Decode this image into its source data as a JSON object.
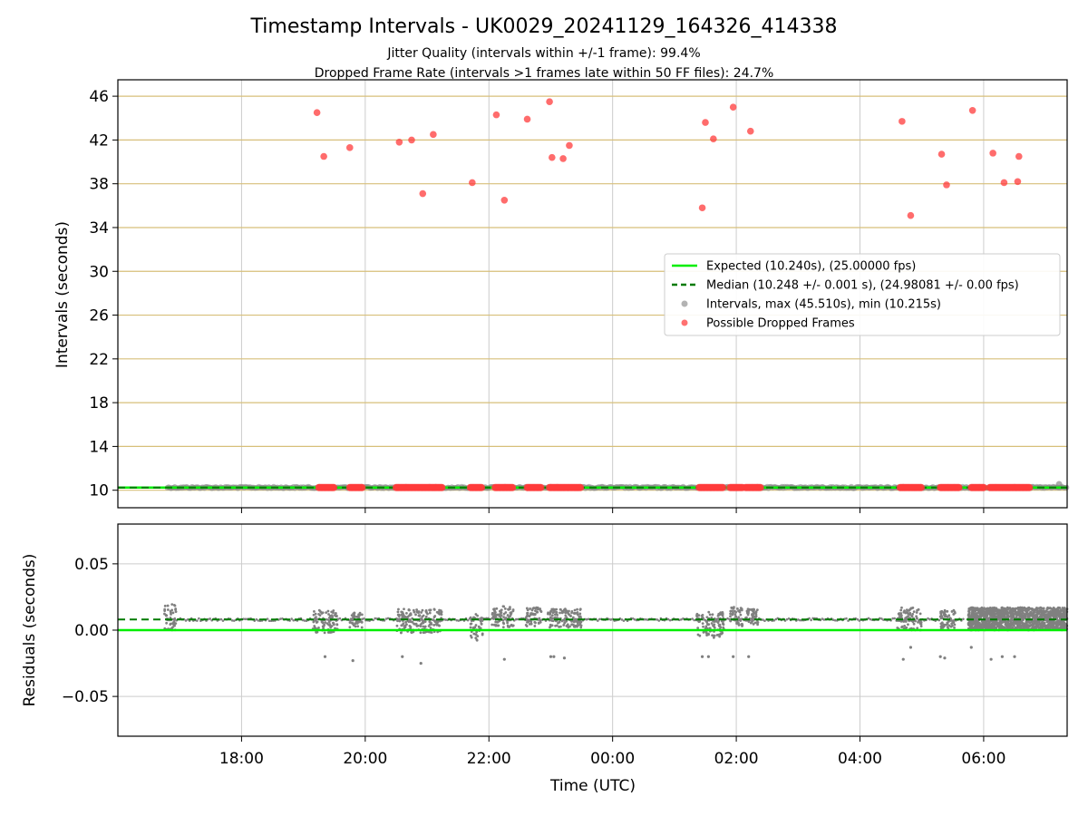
{
  "chart_data": {
    "type": "scatter",
    "title": "Timestamp Intervals - UK0029_20241129_164326_414338",
    "subtitle_lines": [
      "Jitter Quality (intervals within +/-1 frame): 99.4%",
      "Dropped Frame Rate (intervals >1 frames late within 50 FF files): 24.7%"
    ],
    "xlabel": "Time (UTC)",
    "x_unit": "hours after 00:00 UTC (negative = previous day)",
    "xlim": [
      -8.0,
      7.35
    ],
    "x_ticks": [
      {
        "value": -6,
        "label": "18:00"
      },
      {
        "value": -4,
        "label": "20:00"
      },
      {
        "value": -2,
        "label": "22:00"
      },
      {
        "value": 0,
        "label": "00:00"
      },
      {
        "value": 2,
        "label": "02:00"
      },
      {
        "value": 4,
        "label": "04:00"
      },
      {
        "value": 6,
        "label": "06:00"
      }
    ],
    "top_panel": {
      "ylabel": "Intervals (seconds)",
      "ylim": [
        8.4,
        47.5
      ],
      "y_ticks": [
        10,
        14,
        18,
        22,
        26,
        30,
        34,
        38,
        42,
        46
      ],
      "grid": true,
      "grid_color_y": "#d7bf7a",
      "legend_position": "center-right",
      "legend": [
        {
          "label": "Expected (10.240s), (25.00000 fps)",
          "kind": "line",
          "color": "#00ee00",
          "dashed": false
        },
        {
          "label": "Median (10.248 +/- 0.001 s), (24.98081 +/- 0.00 fps)",
          "kind": "line",
          "color": "#007a00",
          "dashed": true
        },
        {
          "label": "Intervals, max (45.510s), min (10.215s)",
          "kind": "marker",
          "color": "#a0a0a0"
        },
        {
          "label": "Possible Dropped Frames",
          "kind": "marker",
          "color": "#ff4d4d"
        }
      ],
      "expected_interval": 10.24,
      "median_interval": 10.248,
      "baseline_intervals_range": [
        -7.2,
        7.35
      ],
      "dropped_frames_high": [
        {
          "x": -4.78,
          "y": 44.5
        },
        {
          "x": -4.67,
          "y": 40.5
        },
        {
          "x": -4.25,
          "y": 41.3
        },
        {
          "x": -3.45,
          "y": 41.8
        },
        {
          "x": -3.25,
          "y": 42.0
        },
        {
          "x": -3.07,
          "y": 37.1
        },
        {
          "x": -2.9,
          "y": 42.5
        },
        {
          "x": -2.27,
          "y": 38.1
        },
        {
          "x": -1.88,
          "y": 44.3
        },
        {
          "x": -1.75,
          "y": 36.5
        },
        {
          "x": -1.38,
          "y": 43.9
        },
        {
          "x": -1.02,
          "y": 45.5
        },
        {
          "x": -0.98,
          "y": 40.4
        },
        {
          "x": -0.8,
          "y": 40.3
        },
        {
          "x": -0.7,
          "y": 41.5
        },
        {
          "x": 1.45,
          "y": 35.8
        },
        {
          "x": 1.5,
          "y": 43.6
        },
        {
          "x": 1.63,
          "y": 42.1
        },
        {
          "x": 1.95,
          "y": 45.0
        },
        {
          "x": 2.23,
          "y": 42.8
        },
        {
          "x": 4.68,
          "y": 43.7
        },
        {
          "x": 4.82,
          "y": 35.1
        },
        {
          "x": 5.32,
          "y": 40.7
        },
        {
          "x": 5.4,
          "y": 37.9
        },
        {
          "x": 5.82,
          "y": 44.7
        },
        {
          "x": 6.15,
          "y": 40.8
        },
        {
          "x": 6.33,
          "y": 38.1
        },
        {
          "x": 6.55,
          "y": 38.2
        },
        {
          "x": 6.57,
          "y": 40.5
        }
      ],
      "dropped_frames_baseline_clusters": [
        [
          -4.75,
          -4.5
        ],
        [
          -4.25,
          -4.05
        ],
        [
          -3.5,
          -2.75
        ],
        [
          -2.3,
          -2.1
        ],
        [
          -1.9,
          -1.6
        ],
        [
          -1.38,
          -1.15
        ],
        [
          -1.02,
          -0.5
        ],
        [
          1.4,
          1.8
        ],
        [
          1.9,
          2.1
        ],
        [
          2.15,
          2.4
        ],
        [
          4.65,
          5.0
        ],
        [
          5.3,
          5.6
        ],
        [
          5.8,
          6.0
        ],
        [
          6.1,
          6.75
        ]
      ],
      "interval_extra_points": [
        {
          "x": 7.22,
          "y": 10.55
        }
      ]
    },
    "bottom_panel": {
      "ylabel": "Residuals (seconds)",
      "ylim": [
        -0.08,
        0.08
      ],
      "y_ticks": [
        {
          "value": 0.05,
          "label": "0.05"
        },
        {
          "value": 0.0,
          "label": "0.00"
        },
        {
          "value": -0.05,
          "label": "−0.05"
        }
      ],
      "grid": true,
      "expected_residual": 0.0,
      "median_residual": 0.008,
      "residual_clusters": [
        {
          "x": [
            -7.25,
            -7.05
          ],
          "y_min": 0.0,
          "y_max": 0.02
        },
        {
          "x": [
            -4.85,
            -4.45
          ],
          "y_min": -0.002,
          "y_max": 0.015
        },
        {
          "x": [
            -4.25,
            -4.05
          ],
          "y_min": 0.002,
          "y_max": 0.014
        },
        {
          "x": [
            -3.5,
            -2.75
          ],
          "y_min": -0.002,
          "y_max": 0.016
        },
        {
          "x": [
            -2.3,
            -2.1
          ],
          "y_min": -0.008,
          "y_max": 0.012
        },
        {
          "x": [
            -1.95,
            -1.6
          ],
          "y_min": 0.002,
          "y_max": 0.018
        },
        {
          "x": [
            -1.4,
            -1.15
          ],
          "y_min": 0.003,
          "y_max": 0.017
        },
        {
          "x": [
            -1.05,
            -0.5
          ],
          "y_min": 0.002,
          "y_max": 0.016
        },
        {
          "x": [
            1.35,
            1.8
          ],
          "y_min": -0.006,
          "y_max": 0.014
        },
        {
          "x": [
            1.9,
            2.1
          ],
          "y_min": 0.003,
          "y_max": 0.018
        },
        {
          "x": [
            2.15,
            2.35
          ],
          "y_min": 0.004,
          "y_max": 0.016
        },
        {
          "x": [
            4.6,
            5.0
          ],
          "y_min": -0.0,
          "y_max": 0.017
        },
        {
          "x": [
            5.3,
            5.55
          ],
          "y_min": 0.001,
          "y_max": 0.015
        },
        {
          "x": [
            5.75,
            7.35
          ],
          "y_min": 0.0,
          "y_max": 0.017,
          "dense": true
        }
      ],
      "residual_outliers": [
        {
          "x": -4.65,
          "y": -0.02
        },
        {
          "x": -4.2,
          "y": -0.023
        },
        {
          "x": -3.4,
          "y": -0.02
        },
        {
          "x": -3.1,
          "y": -0.025
        },
        {
          "x": -1.75,
          "y": -0.022
        },
        {
          "x": -1.0,
          "y": -0.02
        },
        {
          "x": -0.95,
          "y": -0.02
        },
        {
          "x": -0.78,
          "y": -0.021
        },
        {
          "x": 1.45,
          "y": -0.02
        },
        {
          "x": 1.55,
          "y": -0.02
        },
        {
          "x": 1.95,
          "y": -0.02
        },
        {
          "x": 2.2,
          "y": -0.02
        },
        {
          "x": 4.7,
          "y": -0.022
        },
        {
          "x": 4.82,
          "y": -0.013
        },
        {
          "x": 5.3,
          "y": -0.02
        },
        {
          "x": 5.37,
          "y": -0.021
        },
        {
          "x": 5.8,
          "y": -0.013
        },
        {
          "x": 6.12,
          "y": -0.022
        },
        {
          "x": 6.3,
          "y": -0.02
        },
        {
          "x": 6.5,
          "y": -0.02
        }
      ]
    },
    "colors": {
      "expected": "#00ee00",
      "median": "#007a00",
      "intervals": "#808080",
      "dropped": "#ff3b3b",
      "grid": "#cccccc"
    }
  }
}
